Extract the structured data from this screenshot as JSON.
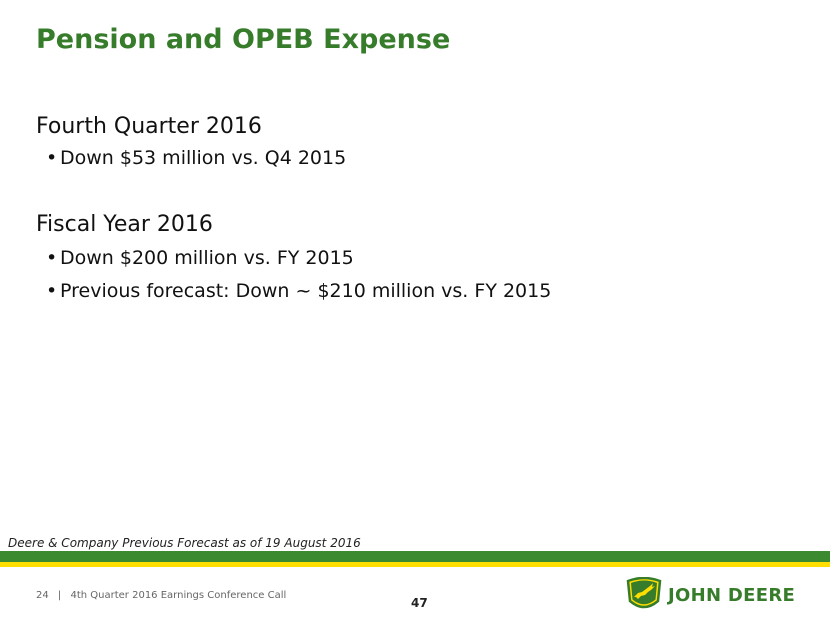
{
  "title": "Pension and OPEB Expense",
  "sections": [
    {
      "heading": "Fourth Quarter 2016",
      "bullets": [
        "Down $53 million vs. Q4 2015"
      ]
    },
    {
      "heading": "Fiscal Year 2016",
      "bullets": [
        "Down $200 million vs. FY 2015",
        "Previous forecast: Down ~ $210 million vs. FY 2015"
      ]
    }
  ],
  "footnote": "Deere & Company Previous Forecast as of 19 August 2016",
  "footer": {
    "slide": "24",
    "separator": "|",
    "event": "4th Quarter 2016 Earnings Conference Call"
  },
  "page_number": "47",
  "brand": {
    "name": "JOHN DEERE",
    "green": "#367c2b",
    "yellow": "#ffde00",
    "logo_icon": "leaping-deer-icon"
  }
}
